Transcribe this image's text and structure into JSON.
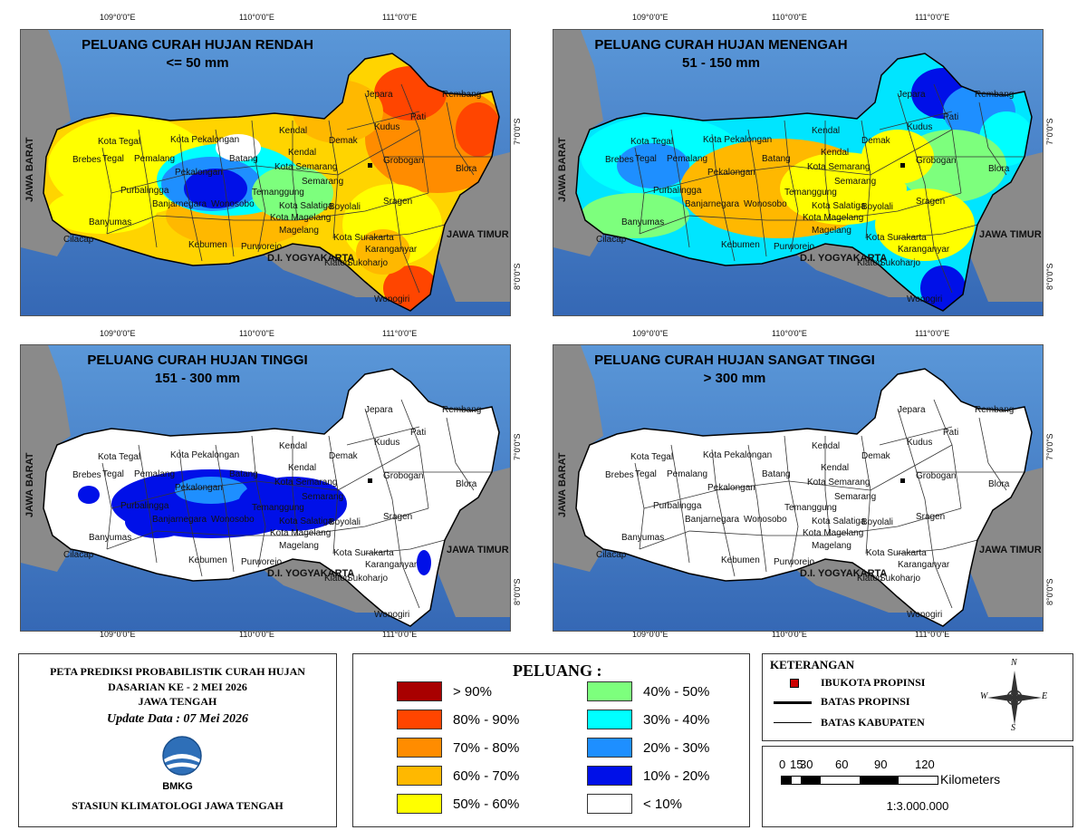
{
  "coords": {
    "lon_labels": [
      "109°0'0\"E",
      "110°0'0\"E",
      "111°0'0\"E"
    ],
    "lat_labels": [
      "7°0'0\"S",
      "8°0'0\"S"
    ]
  },
  "maps": [
    {
      "title_line1": "PELUANG CURAH HUJAN RENDAH",
      "title_line2": "<= 50 mm"
    },
    {
      "title_line1": "PELUANG CURAH HUJAN MENENGAH",
      "title_line2": "51 - 150 mm"
    },
    {
      "title_line1": "PELUANG CURAH HUJAN TINGGI",
      "title_line2": "151 - 300 mm"
    },
    {
      "title_line1": "PELUANG CURAH HUJAN SANGAT TINGGI",
      "title_line2": "> 300 mm"
    }
  ],
  "regions": {
    "jawa_barat": "JAWA BARAT",
    "jawa_timur": "JAWA TIMUR",
    "diy": "D.I. YOGYAKARTA"
  },
  "kabupaten": [
    "Jepara",
    "Kudus",
    "Pati",
    "Rembang",
    "Kota Tegal",
    "Kota Pekalongan",
    "Kendal",
    "Kendal",
    "Demak",
    "Brebes",
    "Tegal",
    "Pemalang",
    "Pekalongan",
    "Batang",
    "Kota Semarang",
    "Grobogan",
    "Blora",
    "Semarang",
    "Purbalingga",
    "Banjarnegara",
    "Wonosobo",
    "Temanggung",
    "Kota Salatiga",
    "Boyolali",
    "Sragen",
    "Banyumas",
    "Kota Magelang",
    "Magelang",
    "Kota Surakarta",
    "Cilacap",
    "Kebumen",
    "Purworejo",
    "Karanganyar",
    "Klaten",
    "Sukoharjo",
    "Wonogiri"
  ],
  "info": {
    "title_line1": "PETA PREDIKSI PROBABILISTIK CURAH HUJAN",
    "title_line2": "DASARIAN KE - 2 MEI 2026",
    "title_line3": "JAWA TENGAH",
    "update": "Update Data : 07 Mei 2026",
    "logo_text": "BMKG",
    "station": "STASIUN KLIMATOLOGI JAWA TENGAH"
  },
  "legend": {
    "title": "PELUANG :",
    "items": [
      {
        "label": "> 90%",
        "color": "#a80000"
      },
      {
        "label": "80% - 90%",
        "color": "#ff4500"
      },
      {
        "label": "70% - 80%",
        "color": "#ff8c00"
      },
      {
        "label": "60% - 70%",
        "color": "#ffb800"
      },
      {
        "label": "50% - 60%",
        "color": "#ffff00"
      },
      {
        "label": "40% - 50%",
        "color": "#7dff7d"
      },
      {
        "label": "30% - 40%",
        "color": "#00ffff"
      },
      {
        "label": "20% - 30%",
        "color": "#1e8fff"
      },
      {
        "label": "10% - 20%",
        "color": "#0010e8"
      },
      {
        "label": "< 10%",
        "color": "#ffffff"
      }
    ]
  },
  "keterangan": {
    "title": "KETERANGAN",
    "ibukota": "IBUKOTA PROPINSI",
    "batas_propinsi": "BATAS PROPINSI",
    "batas_kabupaten": "BATAS KABUPATEN",
    "compass": {
      "n": "N",
      "e": "E",
      "s": "S",
      "w": "W"
    }
  },
  "scale": {
    "ticks": [
      "0",
      "15",
      "30",
      "60",
      "90",
      "120"
    ],
    "unit": "Kilometers",
    "ratio": "1:3.000.000"
  }
}
